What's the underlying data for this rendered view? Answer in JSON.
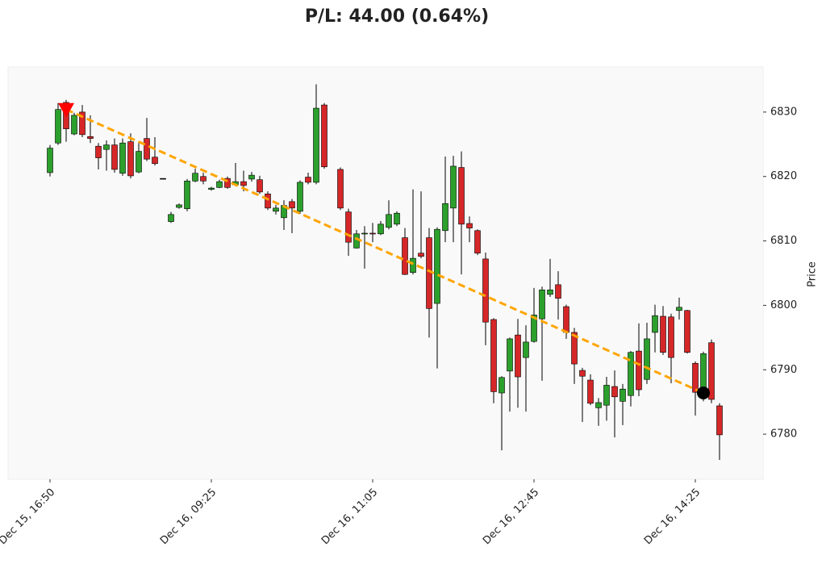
{
  "chart_data": {
    "type": "candlestick",
    "title": "P/L: 44.00 (0.64%)",
    "y_label": "Price",
    "categories": [
      "Dec 15, 16:50",
      null,
      null,
      null,
      null,
      null,
      null,
      null,
      null,
      null,
      null,
      null,
      null,
      null,
      null,
      null,
      null,
      null,
      null,
      null,
      "Dec 16, 09:25",
      null,
      null,
      null,
      null,
      null,
      null,
      null,
      null,
      null,
      null,
      null,
      null,
      null,
      null,
      null,
      null,
      null,
      null,
      null,
      "Dec 16, 11:05",
      null,
      null,
      null,
      null,
      null,
      null,
      null,
      null,
      null,
      null,
      null,
      null,
      null,
      null,
      null,
      null,
      null,
      null,
      null,
      "Dec 16, 12:45",
      null,
      null,
      null,
      null,
      null,
      null,
      null,
      null,
      null,
      null,
      null,
      null,
      null,
      null,
      null,
      null,
      null,
      null,
      null,
      "Dec 16, 14:25",
      null,
      null,
      null
    ],
    "open": [
      6820.6,
      6825.2,
      6831.5,
      6826.6,
      6830.0,
      6826.2,
      6824.7,
      6824.2,
      6824.9,
      6820.5,
      6825.4,
      6820.7,
      6825.9,
      6823.0,
      6819.7,
      6813.0,
      6815.2,
      6815.0,
      6819.3,
      6820.0,
      6818.0,
      6818.3,
      6819.7,
      6818.7,
      6819.2,
      6819.6,
      6819.5,
      6817.3,
      6814.6,
      6813.6,
      6816.1,
      6814.6,
      6819.9,
      6819.1,
      6831.1,
      null,
      6821.1,
      6814.5,
      6808.9,
      6811.1,
      6811.2,
      6811.1,
      6812.1,
      6812.6,
      6810.5,
      6805.1,
      6808.1,
      6810.5,
      6800.3,
      6811.6,
      6815.1,
      6821.4,
      6812.7,
      6811.6,
      6807.2,
      6797.8,
      6786.4,
      6789.8,
      6795.4,
      6791.9,
      6794.4,
      6797.9,
      6801.7,
      6803.2,
      6799.8,
      6795.8,
      6789.9,
      6788.4,
      6784.1,
      6784.5,
      6787.4,
      6785.1,
      6786.0,
      6792.9,
      6788.5,
      6795.8,
      6798.3,
      6798.2,
      6799.2,
      6799.2,
      6791.0,
      6786.8,
      6794.2,
      6784.4
    ],
    "high": [
      6824.9,
      6831.4,
      6831.9,
      6829.9,
      6831.1,
      6829.5,
      6825.2,
      6825.6,
      6825.9,
      6825.9,
      6826.7,
      6825.2,
      6829.1,
      6826.1,
      6819.7,
      6814.5,
      6815.8,
      6819.6,
      6821.2,
      6820.6,
      6818.4,
      6819.5,
      6820.0,
      6822.1,
      6820.9,
      6820.7,
      6820.1,
      6817.7,
      6815.6,
      6816.3,
      6816.5,
      6819.4,
      6820.6,
      6834.3,
      6831.4,
      null,
      6821.4,
      6815.0,
      6811.7,
      6812.3,
      6812.8,
      6813.1,
      6816.3,
      6814.6,
      6812.0,
      6818.0,
      6817.7,
      6812.0,
      6812.1,
      6823.1,
      6823.2,
      6823.9,
      6813.8,
      6811.8,
      6808.2,
      6798.0,
      6789.0,
      6795.0,
      6797.9,
      6796.9,
      6802.7,
      6802.9,
      6807.2,
      6805.3,
      6800.1,
      6796.5,
      6790.3,
      6789.3,
      6785.6,
      6788.9,
      6789.9,
      6787.8,
      6792.9,
      6797.2,
      6797.3,
      6800.1,
      6799.9,
      6798.7,
      6801.2,
      6799.3,
      6791.3,
      6792.8,
      6794.7,
      6784.8
    ],
    "low": [
      6820.0,
      6824.9,
      6825.4,
      6826.4,
      6826.1,
      6825.2,
      6821.1,
      6820.9,
      6820.6,
      6820.1,
      6819.7,
      6820.5,
      6822.4,
      6821.7,
      6819.7,
      6812.8,
      6815.0,
      6814.6,
      6819.1,
      6818.8,
      6817.8,
      6818.2,
      6818.1,
      6818.5,
      6817.7,
      6819.2,
      6817.3,
      6814.8,
      6814.1,
      6811.7,
      6811.2,
      6814.2,
      6818.8,
      6818.8,
      6821.2,
      null,
      6814.8,
      6807.7,
      6808.8,
      6805.7,
      6809.8,
      6810.9,
      6811.8,
      6812.3,
      6804.7,
      6804.8,
      6807.3,
      6795.0,
      6790.2,
      6809.8,
      6809.8,
      6804.8,
      6809.8,
      6807.8,
      6793.8,
      6784.8,
      6777.5,
      6783.5,
      6784.1,
      6783.5,
      6794.2,
      6788.3,
      6801.3,
      6797.8,
      6794.8,
      6787.8,
      6781.9,
      6784.5,
      6781.3,
      6782.1,
      6779.5,
      6781.4,
      6784.3,
      6785.9,
      6787.8,
      6792.7,
      6792.3,
      6787.9,
      6797.8,
      6792.5,
      6782.9,
      6785.1,
      6784.8,
      6776.0
    ],
    "close": [
      6824.4,
      6830.4,
      6827.4,
      6829.5,
      6826.5,
      6825.9,
      6822.9,
      6824.9,
      6821.1,
      6825.2,
      6820.1,
      6823.9,
      6822.7,
      6822.0,
      6819.7,
      6814.1,
      6815.6,
      6819.3,
      6820.5,
      6819.3,
      6818.2,
      6819.2,
      6818.3,
      6819.2,
      6818.6,
      6820.2,
      6817.6,
      6815.1,
      6815.1,
      6815.5,
      6815.1,
      6819.1,
      6819.1,
      6830.6,
      6821.5,
      null,
      6815.1,
      6809.8,
      6811.1,
      6811.2,
      6811.1,
      6812.6,
      6814.1,
      6814.3,
      6804.8,
      6807.3,
      6807.6,
      6799.5,
      6811.8,
      6815.8,
      6821.6,
      6812.6,
      6812.0,
      6808.1,
      6797.4,
      6786.6,
      6788.8,
      6794.8,
      6788.9,
      6794.3,
      6798.5,
      6802.4,
      6802.4,
      6801.1,
      6795.8,
      6790.9,
      6789.0,
      6784.8,
      6784.9,
      6787.6,
      6785.8,
      6787.0,
      6792.7,
      6786.9,
      6794.8,
      6798.4,
      6792.7,
      6791.9,
      6799.7,
      6792.7,
      6786.5,
      6792.5,
      6785.4,
      6779.9
    ],
    "up_color": "#2ca02c",
    "down_color": "#d62728",
    "entry": {
      "x": 2,
      "price": 6830.4,
      "color": "#ff0000"
    },
    "exit": {
      "x": 81,
      "price": 6786.4,
      "color": "#000000"
    },
    "trade_line_color": "#ffa500",
    "ylim": [
      6773,
      6837
    ],
    "yticks": [
      6780,
      6790,
      6800,
      6810,
      6820,
      6830
    ]
  }
}
